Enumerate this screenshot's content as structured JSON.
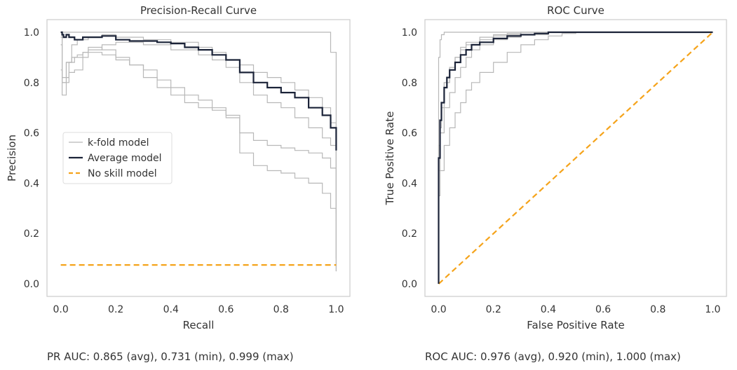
{
  "colors": {
    "kfold": "#b8b8b8",
    "average": "#1b2338",
    "no_skill": "#f5a31a",
    "frame": "#cccccc",
    "text": "#333333"
  },
  "chart_data": [
    {
      "type": "line",
      "title": "Precision-Recall Curve",
      "xlabel": "Recall",
      "ylabel": "Precision",
      "xlim": [
        -0.05,
        1.05
      ],
      "ylim": [
        -0.05,
        1.05
      ],
      "xticks": [
        "0.0",
        "0.2",
        "0.4",
        "0.6",
        "0.8",
        "1.0"
      ],
      "yticks": [
        "0.0",
        "0.2",
        "0.4",
        "0.6",
        "0.8",
        "1.0"
      ],
      "grid": false,
      "legend": {
        "position": "center-left",
        "entries": [
          "k-fold model",
          "Average model",
          "No skill model"
        ]
      },
      "series": [
        {
          "name": "k-fold model",
          "role": "kfold",
          "x": [
            0,
            0.01,
            0.05,
            0.55,
            0.6,
            0.6,
            0.98,
            0.98,
            1.0,
            1.0
          ],
          "y": [
            1.0,
            1.0,
            1.0,
            1.0,
            1.0,
            1.0,
            1.0,
            0.92,
            0.9,
            0.28
          ]
        },
        {
          "name": "k-fold model",
          "role": "kfold",
          "x": [
            0,
            0.005,
            0.02,
            0.04,
            0.06,
            0.1,
            0.15,
            0.2,
            0.3,
            0.4,
            0.5,
            0.55,
            0.6,
            0.65,
            0.7,
            0.75,
            0.8,
            0.85,
            0.9,
            0.95,
            0.98,
            1.0,
            1.0
          ],
          "y": [
            1.0,
            0.75,
            0.88,
            0.95,
            0.97,
            0.98,
            0.99,
            0.98,
            0.97,
            0.96,
            0.94,
            0.92,
            0.89,
            0.87,
            0.84,
            0.82,
            0.8,
            0.77,
            0.74,
            0.7,
            0.64,
            0.58,
            0.1
          ]
        },
        {
          "name": "k-fold model",
          "role": "kfold",
          "x": [
            0,
            0.005,
            0.02,
            0.04,
            0.06,
            0.08,
            0.1,
            0.15,
            0.2,
            0.3,
            0.4,
            0.5,
            0.55,
            0.6,
            0.65,
            0.7,
            0.75,
            0.8,
            0.85,
            0.9,
            0.95,
            0.98,
            1.0,
            1.0
          ],
          "y": [
            0.85,
            0.8,
            0.88,
            0.9,
            0.91,
            0.92,
            0.93,
            0.95,
            0.96,
            0.95,
            0.93,
            0.91,
            0.89,
            0.86,
            0.8,
            0.75,
            0.72,
            0.7,
            0.66,
            0.62,
            0.58,
            0.55,
            0.5,
            0.05
          ]
        },
        {
          "name": "k-fold model",
          "role": "kfold",
          "x": [
            0,
            0.005,
            0.03,
            0.05,
            0.08,
            0.1,
            0.15,
            0.2,
            0.25,
            0.3,
            0.35,
            0.4,
            0.45,
            0.5,
            0.55,
            0.6,
            0.65,
            0.7,
            0.75,
            0.8,
            0.85,
            0.9,
            0.95,
            0.98,
            1.0,
            1.0
          ],
          "y": [
            0.95,
            0.82,
            0.84,
            0.85,
            0.9,
            0.92,
            0.91,
            0.89,
            0.87,
            0.85,
            0.81,
            0.78,
            0.75,
            0.73,
            0.7,
            0.66,
            0.6,
            0.57,
            0.55,
            0.54,
            0.53,
            0.52,
            0.5,
            0.46,
            0.4,
            0.05
          ]
        },
        {
          "name": "k-fold model",
          "role": "kfold",
          "x": [
            0,
            0.005,
            0.03,
            0.05,
            0.08,
            0.1,
            0.15,
            0.2,
            0.25,
            0.3,
            0.35,
            0.4,
            0.45,
            0.5,
            0.55,
            0.6,
            0.65,
            0.7,
            0.75,
            0.8,
            0.85,
            0.9,
            0.95,
            0.98,
            1.0
          ],
          "y": [
            0.98,
            0.8,
            0.88,
            0.9,
            0.92,
            0.94,
            0.93,
            0.9,
            0.87,
            0.82,
            0.78,
            0.75,
            0.72,
            0.7,
            0.69,
            0.67,
            0.52,
            0.47,
            0.45,
            0.44,
            0.42,
            0.4,
            0.36,
            0.3,
            0.25
          ]
        },
        {
          "name": "Average model",
          "role": "average",
          "x": [
            0,
            0.005,
            0.01,
            0.02,
            0.03,
            0.05,
            0.08,
            0.1,
            0.15,
            0.2,
            0.25,
            0.3,
            0.35,
            0.4,
            0.45,
            0.5,
            0.55,
            0.6,
            0.65,
            0.7,
            0.75,
            0.8,
            0.85,
            0.9,
            0.95,
            0.98,
            1.0,
            1.0
          ],
          "y": [
            1.0,
            0.99,
            0.98,
            0.99,
            0.98,
            0.97,
            0.98,
            0.98,
            0.985,
            0.97,
            0.965,
            0.965,
            0.96,
            0.955,
            0.94,
            0.93,
            0.91,
            0.89,
            0.84,
            0.8,
            0.78,
            0.76,
            0.74,
            0.7,
            0.67,
            0.62,
            0.58,
            0.53
          ]
        },
        {
          "name": "No skill model",
          "role": "no_skill",
          "x": [
            0,
            1
          ],
          "y": [
            0.075,
            0.075
          ]
        }
      ]
    },
    {
      "type": "line",
      "title": "ROC Curve",
      "xlabel": "False Positive Rate",
      "ylabel": "True Positive Rate",
      "xlim": [
        -0.05,
        1.05
      ],
      "ylim": [
        -0.05,
        1.05
      ],
      "xticks": [
        "0.0",
        "0.2",
        "0.4",
        "0.6",
        "0.8",
        "1.0"
      ],
      "yticks": [
        "0.0",
        "0.2",
        "0.4",
        "0.6",
        "0.8",
        "1.0"
      ],
      "grid": false,
      "series": [
        {
          "name": "k-fold model",
          "role": "kfold",
          "x": [
            0,
            0.0,
            0.005,
            0.01,
            0.02,
            0.03,
            1.0
          ],
          "y": [
            0,
            0.9,
            0.97,
            0.99,
            1.0,
            1.0,
            1.0
          ]
        },
        {
          "name": "k-fold model",
          "role": "kfold",
          "x": [
            0,
            0.0,
            0.005,
            0.01,
            0.02,
            0.04,
            0.06,
            0.08,
            0.1,
            0.15,
            0.2,
            0.3,
            0.4,
            1.0
          ],
          "y": [
            0,
            0.5,
            0.62,
            0.7,
            0.8,
            0.86,
            0.9,
            0.94,
            0.96,
            0.98,
            0.99,
            1.0,
            1.0,
            1.0
          ]
        },
        {
          "name": "k-fold model",
          "role": "kfold",
          "x": [
            0,
            0.0,
            0.005,
            0.02,
            0.04,
            0.06,
            0.08,
            0.1,
            0.12,
            0.15,
            0.2,
            0.25,
            0.3,
            0.4,
            0.5,
            1.0
          ],
          "y": [
            0,
            0.45,
            0.6,
            0.7,
            0.76,
            0.82,
            0.86,
            0.9,
            0.93,
            0.95,
            0.97,
            0.98,
            0.99,
            1.0,
            1.0,
            1.0
          ]
        },
        {
          "name": "k-fold model",
          "role": "kfold",
          "x": [
            0,
            0.0,
            0.005,
            0.02,
            0.04,
            0.06,
            0.08,
            0.1,
            0.12,
            0.15,
            0.2,
            0.25,
            0.3,
            0.35,
            0.4,
            0.45,
            0.5,
            1.0
          ],
          "y": [
            0,
            0.35,
            0.45,
            0.55,
            0.62,
            0.68,
            0.72,
            0.77,
            0.8,
            0.84,
            0.88,
            0.92,
            0.95,
            0.97,
            0.985,
            0.995,
            1.0,
            1.0
          ]
        },
        {
          "name": "k-fold model",
          "role": "kfold",
          "x": [
            0,
            0.0,
            0.005,
            0.01,
            0.02,
            0.04,
            0.06,
            0.08,
            0.1,
            0.15,
            0.2,
            0.25,
            0.3,
            1.0
          ],
          "y": [
            0,
            0.55,
            0.65,
            0.72,
            0.8,
            0.86,
            0.9,
            0.93,
            0.95,
            0.97,
            0.985,
            0.995,
            1.0,
            1.0
          ]
        },
        {
          "name": "Average model",
          "role": "average",
          "x": [
            0,
            0.0,
            0.005,
            0.01,
            0.02,
            0.03,
            0.04,
            0.06,
            0.08,
            0.1,
            0.12,
            0.15,
            0.2,
            0.25,
            0.3,
            0.35,
            0.4,
            0.5,
            1.0
          ],
          "y": [
            0,
            0.5,
            0.65,
            0.72,
            0.78,
            0.82,
            0.85,
            0.88,
            0.91,
            0.93,
            0.95,
            0.96,
            0.975,
            0.985,
            0.99,
            0.995,
            1.0,
            1.0,
            1.0
          ]
        },
        {
          "name": "No skill model",
          "role": "no_skill",
          "x": [
            0,
            1
          ],
          "y": [
            0,
            1
          ]
        }
      ]
    }
  ],
  "captions": {
    "pr_auc": "PR AUC: 0.865 (avg), 0.731 (min), 0.999 (max)",
    "roc_auc": "ROC AUC: 0.976 (avg), 0.920 (min), 1.000 (max)"
  }
}
